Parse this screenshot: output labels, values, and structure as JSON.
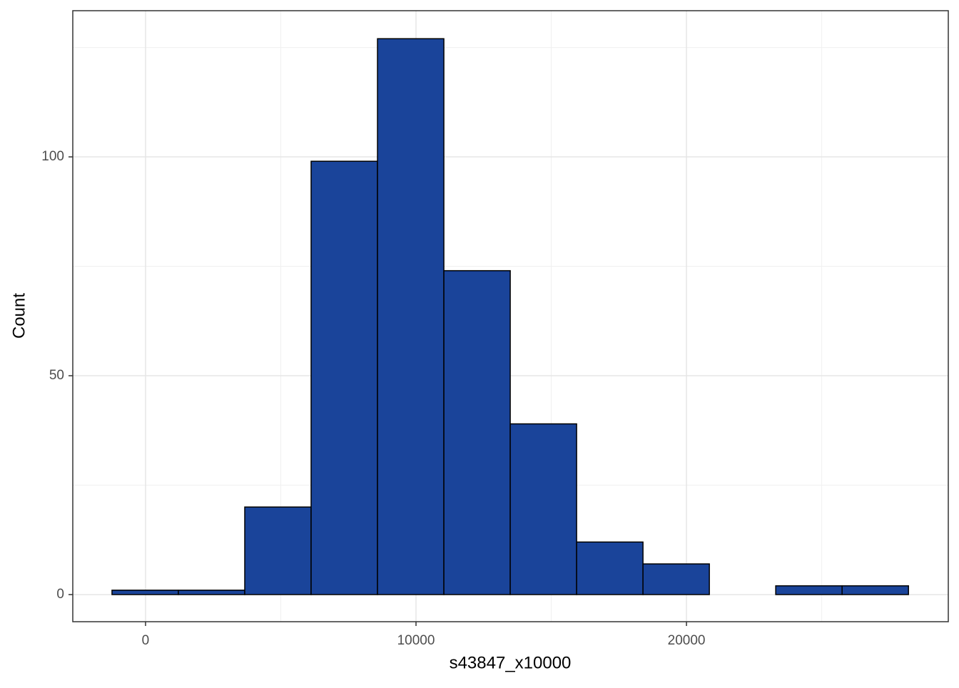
{
  "chart_data": {
    "type": "histogram",
    "xlabel": "s43847_x10000",
    "ylabel": "Count",
    "bins": [
      -1240,
      1214,
      3668,
      6122,
      8576,
      11030,
      13484,
      15938,
      18392,
      20846,
      23300,
      25754,
      28208
    ],
    "counts": [
      1,
      1,
      20,
      99,
      127,
      74,
      39,
      12,
      7,
      0,
      2,
      2
    ],
    "color": "#1a449a",
    "edgecolor": "#000000",
    "xlim": [
      -2690,
      29680
    ],
    "xticks": [
      0,
      10000,
      20000
    ],
    "x_minor_ticks": [
      5000,
      15000,
      25000
    ],
    "ylim": [
      -6.2,
      133.4
    ],
    "yticks": [
      0,
      50,
      100
    ],
    "y_minor_ticks": [
      25,
      75,
      125
    ],
    "grid": true
  }
}
